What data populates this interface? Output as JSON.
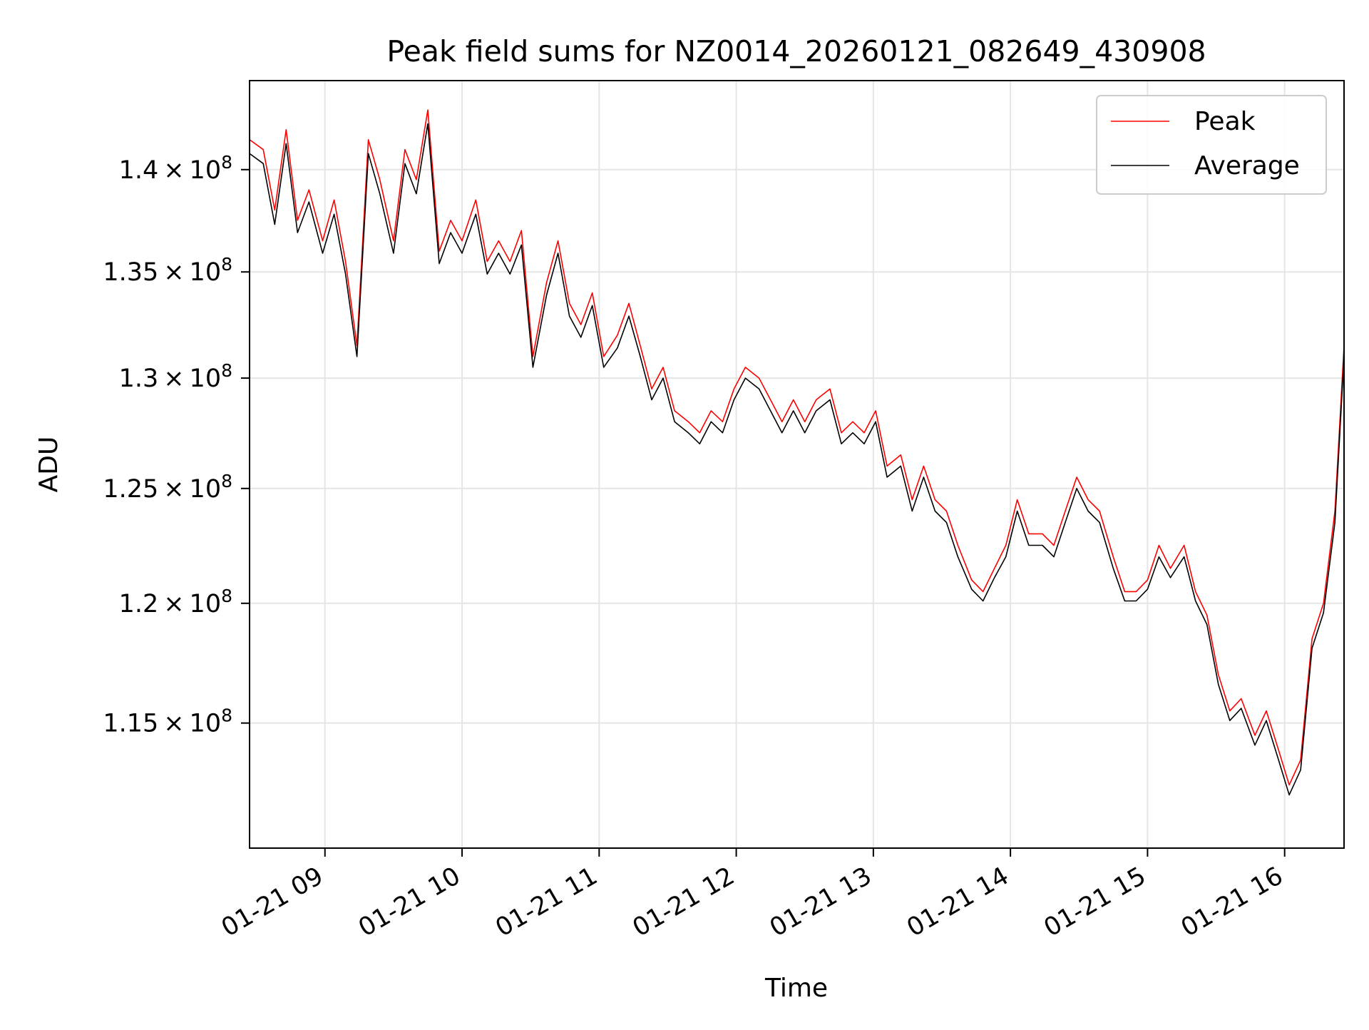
{
  "chart_data": {
    "type": "line",
    "title": "Peak field sums for NZ0014_20260121_082649_430908",
    "xlabel": "Time",
    "ylabel": "ADU",
    "x_start": "2026-01-21T08:27",
    "x_end": "2026-01-21T16:26",
    "x_tick_values": [
      "2026-01-21T09:00",
      "2026-01-21T10:00",
      "2026-01-21T11:00",
      "2026-01-21T12:00",
      "2026-01-21T13:00",
      "2026-01-21T14:00",
      "2026-01-21T15:00",
      "2026-01-21T16:00"
    ],
    "x_tick_labels": [
      "01-21 09",
      "01-21 10",
      "01-21 11",
      "01-21 12",
      "01-21 13",
      "01-21 14",
      "01-21 15",
      "01-21 16"
    ],
    "yscale": "log",
    "ylim": [
      110000000,
      144500000
    ],
    "y_tick_values": [
      115000000,
      120000000,
      125000000,
      130000000,
      135000000,
      140000000
    ],
    "y_tick_mantissas": [
      "1.15",
      "1.2",
      "1.25",
      "1.3",
      "1.35",
      "1.4"
    ],
    "y_tick_exponent": "8",
    "grid": true,
    "legend_position": "top-right",
    "series": [
      {
        "name": "Peak",
        "color": "#ff0000",
        "points": [
          [
            "2026-01-21T08:27",
            141.5
          ],
          [
            "2026-01-21T08:33",
            141.0
          ],
          [
            "2026-01-21T08:38",
            138.0
          ],
          [
            "2026-01-21T08:43",
            142.0
          ],
          [
            "2026-01-21T08:48",
            137.5
          ],
          [
            "2026-01-21T08:53",
            139.0
          ],
          [
            "2026-01-21T08:59",
            136.5
          ],
          [
            "2026-01-21T09:04",
            138.5
          ],
          [
            "2026-01-21T09:09",
            135.5
          ],
          [
            "2026-01-21T09:14",
            131.5
          ],
          [
            "2026-01-21T09:19",
            141.5
          ],
          [
            "2026-01-21T09:24",
            139.5
          ],
          [
            "2026-01-21T09:30",
            136.5
          ],
          [
            "2026-01-21T09:35",
            141.0
          ],
          [
            "2026-01-21T09:40",
            139.5
          ],
          [
            "2026-01-21T09:45",
            143.0
          ],
          [
            "2026-01-21T09:50",
            136.0
          ],
          [
            "2026-01-21T09:55",
            137.5
          ],
          [
            "2026-01-21T10:00",
            136.5
          ],
          [
            "2026-01-21T10:06",
            138.5
          ],
          [
            "2026-01-21T10:11",
            135.5
          ],
          [
            "2026-01-21T10:16",
            136.5
          ],
          [
            "2026-01-21T10:21",
            135.5
          ],
          [
            "2026-01-21T10:26",
            137.0
          ],
          [
            "2026-01-21T10:31",
            131.0
          ],
          [
            "2026-01-21T10:37",
            134.5
          ],
          [
            "2026-01-21T10:42",
            136.5
          ],
          [
            "2026-01-21T10:47",
            133.5
          ],
          [
            "2026-01-21T10:52",
            132.5
          ],
          [
            "2026-01-21T10:57",
            134.0
          ],
          [
            "2026-01-21T11:02",
            131.0
          ],
          [
            "2026-01-21T11:08",
            132.0
          ],
          [
            "2026-01-21T11:13",
            133.5
          ],
          [
            "2026-01-21T11:18",
            131.5
          ],
          [
            "2026-01-21T11:23",
            129.5
          ],
          [
            "2026-01-21T11:28",
            130.5
          ],
          [
            "2026-01-21T11:33",
            128.5
          ],
          [
            "2026-01-21T11:39",
            128.0
          ],
          [
            "2026-01-21T11:44",
            127.5
          ],
          [
            "2026-01-21T11:49",
            128.5
          ],
          [
            "2026-01-21T11:54",
            128.0
          ],
          [
            "2026-01-21T11:59",
            129.5
          ],
          [
            "2026-01-21T12:04",
            130.5
          ],
          [
            "2026-01-21T12:10",
            130.0
          ],
          [
            "2026-01-21T12:15",
            129.0
          ],
          [
            "2026-01-21T12:20",
            128.0
          ],
          [
            "2026-01-21T12:25",
            129.0
          ],
          [
            "2026-01-21T12:30",
            128.0
          ],
          [
            "2026-01-21T12:35",
            129.0
          ],
          [
            "2026-01-21T12:41",
            129.5
          ],
          [
            "2026-01-21T12:46",
            127.5
          ],
          [
            "2026-01-21T12:51",
            128.0
          ],
          [
            "2026-01-21T12:56",
            127.5
          ],
          [
            "2026-01-21T13:01",
            128.5
          ],
          [
            "2026-01-21T13:06",
            126.0
          ],
          [
            "2026-01-21T13:12",
            126.5
          ],
          [
            "2026-01-21T13:17",
            124.5
          ],
          [
            "2026-01-21T13:22",
            126.0
          ],
          [
            "2026-01-21T13:27",
            124.5
          ],
          [
            "2026-01-21T13:32",
            124.0
          ],
          [
            "2026-01-21T13:37",
            122.5
          ],
          [
            "2026-01-21T13:43",
            121.0
          ],
          [
            "2026-01-21T13:48",
            120.5
          ],
          [
            "2026-01-21T13:53",
            121.5
          ],
          [
            "2026-01-21T13:58",
            122.5
          ],
          [
            "2026-01-21T14:03",
            124.5
          ],
          [
            "2026-01-21T14:08",
            123.0
          ],
          [
            "2026-01-21T14:14",
            123.0
          ],
          [
            "2026-01-21T14:19",
            122.5
          ],
          [
            "2026-01-21T14:24",
            124.0
          ],
          [
            "2026-01-21T14:29",
            125.5
          ],
          [
            "2026-01-21T14:34",
            124.5
          ],
          [
            "2026-01-21T14:39",
            124.0
          ],
          [
            "2026-01-21T14:45",
            122.0
          ],
          [
            "2026-01-21T14:50",
            120.5
          ],
          [
            "2026-01-21T14:55",
            120.5
          ],
          [
            "2026-01-21T15:00",
            121.0
          ],
          [
            "2026-01-21T15:05",
            122.5
          ],
          [
            "2026-01-21T15:10",
            121.5
          ],
          [
            "2026-01-21T15:16",
            122.5
          ],
          [
            "2026-01-21T15:21",
            120.5
          ],
          [
            "2026-01-21T15:26",
            119.5
          ],
          [
            "2026-01-21T15:31",
            117.0
          ],
          [
            "2026-01-21T15:36",
            115.5
          ],
          [
            "2026-01-21T15:41",
            116.0
          ],
          [
            "2026-01-21T15:47",
            114.5
          ],
          [
            "2026-01-21T15:52",
            115.5
          ],
          [
            "2026-01-21T15:57",
            114.0
          ],
          [
            "2026-01-21T16:02",
            112.5
          ],
          [
            "2026-01-21T16:07",
            113.5
          ],
          [
            "2026-01-21T16:12",
            118.5
          ],
          [
            "2026-01-21T16:17",
            120.0
          ],
          [
            "2026-01-21T16:22",
            124.0
          ],
          [
            "2026-01-21T16:26",
            131.5
          ]
        ]
      },
      {
        "name": "Average",
        "color": "#000000",
        "points": [
          [
            "2026-01-21T08:27",
            140.8
          ],
          [
            "2026-01-21T08:33",
            140.3
          ],
          [
            "2026-01-21T08:38",
            137.3
          ],
          [
            "2026-01-21T08:43",
            141.3
          ],
          [
            "2026-01-21T08:48",
            136.9
          ],
          [
            "2026-01-21T08:53",
            138.4
          ],
          [
            "2026-01-21T08:59",
            135.9
          ],
          [
            "2026-01-21T09:04",
            137.8
          ],
          [
            "2026-01-21T09:09",
            134.9
          ],
          [
            "2026-01-21T09:14",
            131.0
          ],
          [
            "2026-01-21T09:19",
            140.8
          ],
          [
            "2026-01-21T09:24",
            138.8
          ],
          [
            "2026-01-21T09:30",
            135.9
          ],
          [
            "2026-01-21T09:35",
            140.3
          ],
          [
            "2026-01-21T09:40",
            138.8
          ],
          [
            "2026-01-21T09:45",
            142.3
          ],
          [
            "2026-01-21T09:50",
            135.4
          ],
          [
            "2026-01-21T09:55",
            136.9
          ],
          [
            "2026-01-21T10:00",
            135.9
          ],
          [
            "2026-01-21T10:06",
            137.8
          ],
          [
            "2026-01-21T10:11",
            134.9
          ],
          [
            "2026-01-21T10:16",
            135.9
          ],
          [
            "2026-01-21T10:21",
            134.9
          ],
          [
            "2026-01-21T10:26",
            136.3
          ],
          [
            "2026-01-21T10:31",
            130.5
          ],
          [
            "2026-01-21T10:37",
            133.9
          ],
          [
            "2026-01-21T10:42",
            135.9
          ],
          [
            "2026-01-21T10:47",
            132.9
          ],
          [
            "2026-01-21T10:52",
            131.9
          ],
          [
            "2026-01-21T10:57",
            133.4
          ],
          [
            "2026-01-21T11:02",
            130.5
          ],
          [
            "2026-01-21T11:08",
            131.4
          ],
          [
            "2026-01-21T11:13",
            132.9
          ],
          [
            "2026-01-21T11:18",
            131.0
          ],
          [
            "2026-01-21T11:23",
            129.0
          ],
          [
            "2026-01-21T11:28",
            130.0
          ],
          [
            "2026-01-21T11:33",
            128.0
          ],
          [
            "2026-01-21T11:39",
            127.5
          ],
          [
            "2026-01-21T11:44",
            127.0
          ],
          [
            "2026-01-21T11:49",
            128.0
          ],
          [
            "2026-01-21T11:54",
            127.5
          ],
          [
            "2026-01-21T11:59",
            129.0
          ],
          [
            "2026-01-21T12:04",
            130.0
          ],
          [
            "2026-01-21T12:10",
            129.5
          ],
          [
            "2026-01-21T12:15",
            128.5
          ],
          [
            "2026-01-21T12:20",
            127.5
          ],
          [
            "2026-01-21T12:25",
            128.5
          ],
          [
            "2026-01-21T12:30",
            127.5
          ],
          [
            "2026-01-21T12:35",
            128.5
          ],
          [
            "2026-01-21T12:41",
            129.0
          ],
          [
            "2026-01-21T12:46",
            127.0
          ],
          [
            "2026-01-21T12:51",
            127.5
          ],
          [
            "2026-01-21T12:56",
            127.0
          ],
          [
            "2026-01-21T13:01",
            128.0
          ],
          [
            "2026-01-21T13:06",
            125.5
          ],
          [
            "2026-01-21T13:12",
            126.0
          ],
          [
            "2026-01-21T13:17",
            124.0
          ],
          [
            "2026-01-21T13:22",
            125.5
          ],
          [
            "2026-01-21T13:27",
            124.0
          ],
          [
            "2026-01-21T13:32",
            123.5
          ],
          [
            "2026-01-21T13:37",
            122.0
          ],
          [
            "2026-01-21T13:43",
            120.6
          ],
          [
            "2026-01-21T13:48",
            120.1
          ],
          [
            "2026-01-21T13:53",
            121.1
          ],
          [
            "2026-01-21T13:58",
            122.0
          ],
          [
            "2026-01-21T14:03",
            124.0
          ],
          [
            "2026-01-21T14:08",
            122.5
          ],
          [
            "2026-01-21T14:14",
            122.5
          ],
          [
            "2026-01-21T14:19",
            122.0
          ],
          [
            "2026-01-21T14:24",
            123.5
          ],
          [
            "2026-01-21T14:29",
            125.0
          ],
          [
            "2026-01-21T14:34",
            124.0
          ],
          [
            "2026-01-21T14:39",
            123.5
          ],
          [
            "2026-01-21T14:45",
            121.5
          ],
          [
            "2026-01-21T14:50",
            120.1
          ],
          [
            "2026-01-21T14:55",
            120.1
          ],
          [
            "2026-01-21T15:00",
            120.6
          ],
          [
            "2026-01-21T15:05",
            122.0
          ],
          [
            "2026-01-21T15:10",
            121.1
          ],
          [
            "2026-01-21T15:16",
            122.0
          ],
          [
            "2026-01-21T15:21",
            120.1
          ],
          [
            "2026-01-21T15:26",
            119.1
          ],
          [
            "2026-01-21T15:31",
            116.6
          ],
          [
            "2026-01-21T15:36",
            115.1
          ],
          [
            "2026-01-21T15:41",
            115.6
          ],
          [
            "2026-01-21T15:47",
            114.1
          ],
          [
            "2026-01-21T15:52",
            115.1
          ],
          [
            "2026-01-21T15:57",
            113.6
          ],
          [
            "2026-01-21T16:02",
            112.1
          ],
          [
            "2026-01-21T16:07",
            113.1
          ],
          [
            "2026-01-21T16:12",
            118.1
          ],
          [
            "2026-01-21T16:17",
            119.6
          ],
          [
            "2026-01-21T16:22",
            123.5
          ],
          [
            "2026-01-21T16:26",
            131.0
          ]
        ]
      }
    ]
  }
}
